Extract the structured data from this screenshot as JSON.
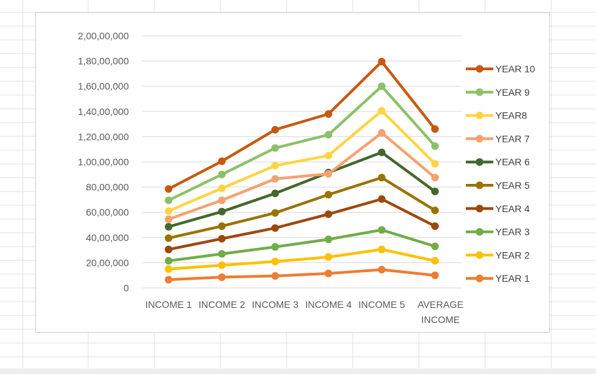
{
  "chart_data": {
    "type": "line",
    "title": "",
    "xlabel": "",
    "ylabel": "",
    "categories": [
      "INCOME 1",
      "INCOME 2",
      "INCOME 3",
      "INCOME 4",
      "INCOME 5",
      "AVERAGE INCOME"
    ],
    "ylim": [
      0,
      20000000
    ],
    "yticks": [
      0,
      2000000,
      4000000,
      6000000,
      8000000,
      10000000,
      12000000,
      14000000,
      16000000,
      18000000,
      20000000
    ],
    "ytick_labels": [
      "0",
      "20,00,000",
      "40,00,000",
      "60,00,000",
      "80,00,000",
      "1,00,00,000",
      "1,20,00,000",
      "1,40,00,000",
      "1,60,00,000",
      "1,80,00,000",
      "2,00,00,000"
    ],
    "grid": true,
    "legend_position": "right",
    "series": [
      {
        "name": "YEAR 1",
        "color": "#ED7D31",
        "values": [
          650000,
          850000,
          950000,
          1150000,
          1450000,
          1000000
        ]
      },
      {
        "name": "YEAR 2",
        "color": "#FFC000",
        "values": [
          1500000,
          1800000,
          2100000,
          2450000,
          3050000,
          2150000
        ]
      },
      {
        "name": "YEAR 3",
        "color": "#70AD47",
        "values": [
          2150000,
          2700000,
          3250000,
          3850000,
          4600000,
          3300000
        ]
      },
      {
        "name": "YEAR 4",
        "color": "#9E480E",
        "values": [
          3050000,
          3900000,
          4750000,
          5850000,
          7050000,
          4900000
        ]
      },
      {
        "name": "YEAR 5",
        "color": "#997300",
        "values": [
          3950000,
          4900000,
          5950000,
          7400000,
          8750000,
          6150000
        ]
      },
      {
        "name": "YEAR 6",
        "color": "#43682B",
        "values": [
          4850000,
          6050000,
          7500000,
          9150000,
          10750000,
          7650000
        ]
      },
      {
        "name": "YEAR 7",
        "color": "#F4A16E",
        "values": [
          5450000,
          6950000,
          8650000,
          9050000,
          12300000,
          8750000
        ]
      },
      {
        "name": "YEAR8",
        "color": "#FFD444",
        "values": [
          6100000,
          7900000,
          9700000,
          10500000,
          14050000,
          9850000
        ]
      },
      {
        "name": "YEAR 9",
        "color": "#8CC168",
        "values": [
          6950000,
          9000000,
          11100000,
          12150000,
          16000000,
          11250000
        ]
      },
      {
        "name": "YEAR 10",
        "color": "#C55A11",
        "values": [
          7850000,
          10050000,
          12550000,
          13800000,
          17950000,
          12600000
        ]
      }
    ]
  }
}
